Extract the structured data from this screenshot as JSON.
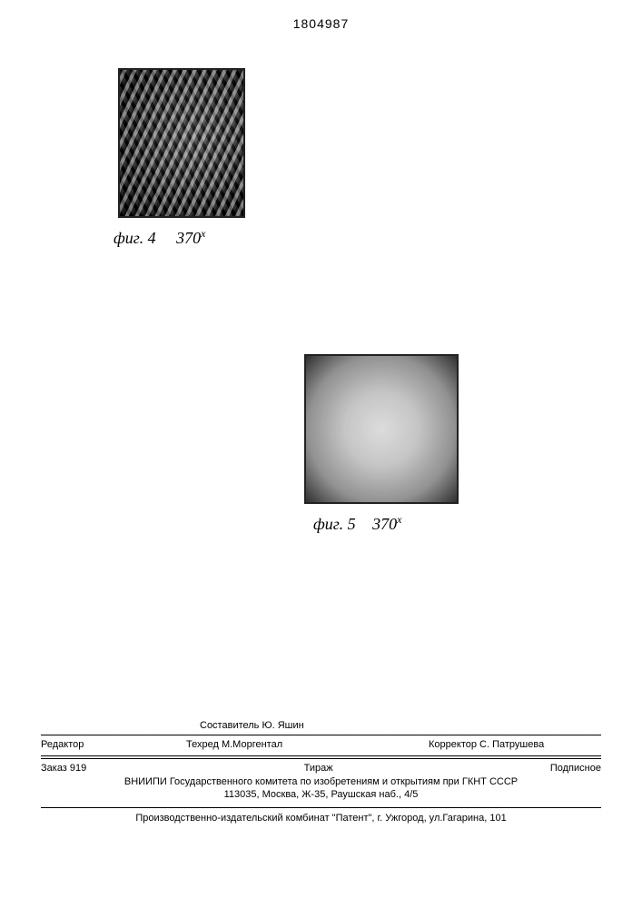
{
  "page_number": "1804987",
  "fig4": {
    "label": "фиг. 4",
    "magnification": "370",
    "mag_suffix": "x"
  },
  "fig5": {
    "label": "фиг. 5",
    "magnification": "370",
    "mag_suffix": "x"
  },
  "credits": {
    "compiler_label": "Составитель",
    "compiler_name": "Ю. Яшин",
    "editor_label": "Редактор",
    "techred_label": "Техред",
    "techred_name": "М.Моргентал",
    "corrector_label": "Корректор",
    "corrector_name": "С. Патрушева"
  },
  "order": {
    "order_label": "Заказ",
    "order_num": "919",
    "tirazh_label": "Тираж",
    "podpisnoe": "Подписное"
  },
  "publisher": {
    "line1": "ВНИИПИ Государственного комитета по изобретениям и открытиям при ГКНТ СССР",
    "line2": "113035, Москва, Ж-35, Раушская наб., 4/5"
  },
  "printer": "Производственно-издательский комбинат \"Патент\", г. Ужгород, ул.Гагарина, 101"
}
